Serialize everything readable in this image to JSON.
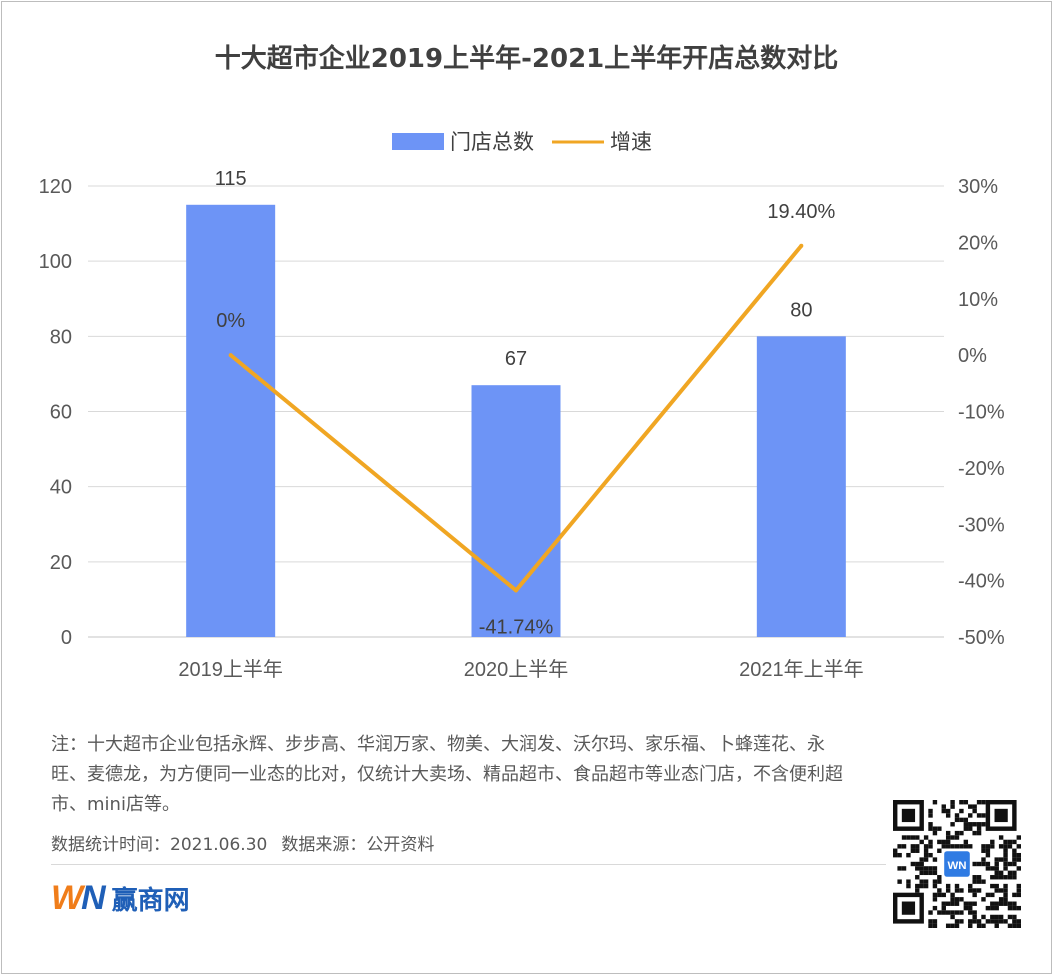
{
  "title": "十大超市企业2019上半年-2021上半年开店总数对比",
  "legend": {
    "bar": "门店总数",
    "line": "增速"
  },
  "colors": {
    "bar": "#6d94f6",
    "line": "#f0a623",
    "grid": "#d9d9d9",
    "text": "#595959"
  },
  "chart_data": {
    "type": "bar+line",
    "categories": [
      "2019上半年",
      "2020上半年",
      "2021年上半年"
    ],
    "series": [
      {
        "name": "门店总数",
        "type": "bar",
        "axis": "left",
        "values": [
          115,
          67,
          80
        ],
        "labels": [
          "115",
          "67",
          "80"
        ]
      },
      {
        "name": "增速",
        "type": "line",
        "axis": "right",
        "values": [
          0,
          -41.74,
          19.4
        ],
        "labels": [
          "0%",
          "-41.74%",
          "19.40%"
        ]
      }
    ],
    "left_axis": {
      "ylim": [
        0,
        120
      ],
      "ticks": [
        "0",
        "20",
        "40",
        "60",
        "80",
        "100",
        "120"
      ]
    },
    "right_axis": {
      "ylim": [
        -50,
        30
      ],
      "ticks": [
        "-50%",
        "-40%",
        "-30%",
        "-20%",
        "-10%",
        "0%",
        "10%",
        "20%",
        "30%"
      ]
    },
    "grid": true,
    "legend_position": "top-center"
  },
  "note": "注：十大超市企业包括永辉、步步高、华润万家、物美、大润发、沃尔玛、家乐福、卜蜂莲花、永旺、麦德龙，为方便同一业态的比对，仅统计大卖场、精品超市、食品超市等业态门店，不含便利超市、mini店等。",
  "footer": {
    "time_label": "数据统计时间：2021.06.30",
    "source_label": "数据来源：公开资料"
  },
  "brand": {
    "mark_w": "W",
    "mark_n": "N",
    "name": "赢商网",
    "qr_badge": "WN"
  }
}
